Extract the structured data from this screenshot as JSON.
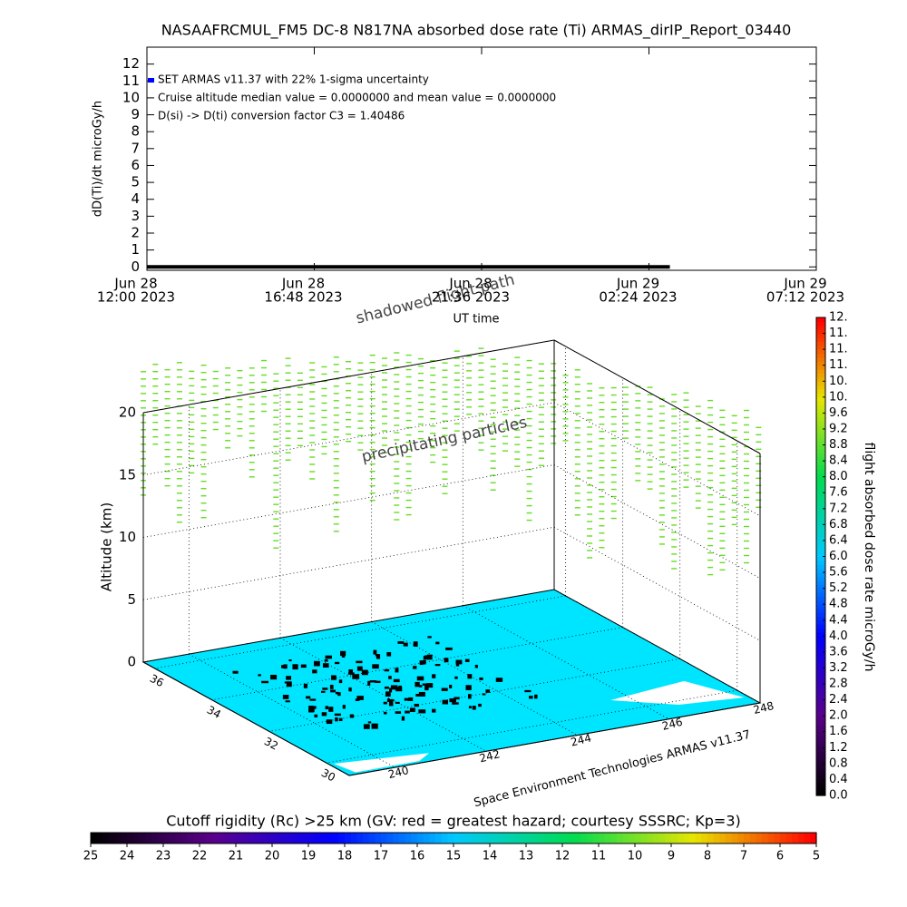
{
  "title": "NASAAFRCMUL_FM5 DC-8   N817NA absorbed dose rate (Ti) ARMAS_dirIP_Report_03440",
  "chart_data": [
    {
      "type": "line",
      "y_label": "dD(Ti)/dt microGy/h",
      "x_label": "UT time",
      "annotations": [
        "Cruise altitude median value = 0.0000000 and mean value = 0.0000000",
        "D(si) -> D(ti) conversion factor C3 = 1.40486"
      ],
      "x": [
        "2023-06-28T12:00",
        "2023-06-29T03:00"
      ],
      "series": [
        {
          "name": "SET ARMAS v11.37 with 22% 1-sigma uncertainty",
          "color": "#0000ff",
          "values": [
            0,
            0
          ]
        }
      ],
      "xlim": [
        "2023-06-28T12:00",
        "2023-06-29T07:12"
      ],
      "xticks": [
        {
          "value": "2023-06-28T12:00",
          "label": [
            "Jun 28",
            "12:00 2023"
          ]
        },
        {
          "value": "2023-06-28T16:48",
          "label": [
            "Jun 28",
            "16:48 2023"
          ]
        },
        {
          "value": "2023-06-28T21:36",
          "label": [
            "Jun 28",
            "21:36 2023"
          ]
        },
        {
          "value": "2023-06-29T02:24",
          "label": [
            "Jun 29",
            "02:24 2023"
          ]
        },
        {
          "value": "2023-06-29T07:12",
          "label": [
            "Jun 29",
            "07:12 2023"
          ]
        }
      ],
      "ylim": [
        -0.2,
        13
      ],
      "yticks": [
        0,
        1,
        2,
        3,
        4,
        5,
        6,
        7,
        8,
        9,
        10,
        11,
        12
      ]
    },
    {
      "type": "surface3d",
      "z_label": "Altitude (km)",
      "annotations": [
        "shadowed flight path",
        "precipitating particles",
        "Space Environment Technologies ARMAS v11.37"
      ],
      "xlim": [
        239,
        248
      ],
      "xticks": [
        240,
        242,
        244,
        246,
        248
      ],
      "ylim": [
        36.4,
        29.2
      ],
      "yticks": [
        36,
        34,
        32,
        30
      ],
      "zlim": [
        0,
        20
      ],
      "zticks": [
        0,
        5,
        10,
        15,
        20
      ]
    },
    {
      "type": "colorbar",
      "label": "flight absorbed dose rate microGy/h",
      "lim": [
        0,
        12
      ],
      "ticks": [
        {
          "value": 0,
          "label": "0.0"
        },
        {
          "value": 0.4,
          "label": "0.4"
        },
        {
          "value": 0.8,
          "label": "0.8"
        },
        {
          "value": 1.2,
          "label": "1.2"
        },
        {
          "value": 1.6,
          "label": "1.6"
        },
        {
          "value": 2,
          "label": "2.0"
        },
        {
          "value": 2.4,
          "label": "2.4"
        },
        {
          "value": 2.8,
          "label": "2.8"
        },
        {
          "value": 3.2,
          "label": "3.2"
        },
        {
          "value": 3.6,
          "label": "3.6"
        },
        {
          "value": 4,
          "label": "4.0"
        },
        {
          "value": 4.4,
          "label": "4.4"
        },
        {
          "value": 4.8,
          "label": "4.8"
        },
        {
          "value": 5.2,
          "label": "5.2"
        },
        {
          "value": 5.6,
          "label": "5.6"
        },
        {
          "value": 6,
          "label": "6.0"
        },
        {
          "value": 6.4,
          "label": "6.4"
        },
        {
          "value": 6.8,
          "label": "6.8"
        },
        {
          "value": 7.2,
          "label": "7.2"
        },
        {
          "value": 7.6,
          "label": "7.6"
        },
        {
          "value": 8,
          "label": "8.0"
        },
        {
          "value": 8.4,
          "label": "8.4"
        },
        {
          "value": 8.8,
          "label": "8.8"
        },
        {
          "value": 9.2,
          "label": "9.2"
        },
        {
          "value": 9.6,
          "label": "9.6"
        },
        {
          "value": 10,
          "label": "10."
        },
        {
          "value": 10.4,
          "label": "10."
        },
        {
          "value": 10.8,
          "label": "11."
        },
        {
          "value": 11.2,
          "label": "11."
        },
        {
          "value": 11.6,
          "label": "11."
        },
        {
          "value": 12,
          "label": "12."
        }
      ]
    },
    {
      "type": "colorbar",
      "label": "Cutoff rigidity (Rc) >25 km (GV: red = greatest hazard; courtesy SSSRC; Kp=3)",
      "lim": [
        25,
        5
      ],
      "ticks": [
        25,
        24,
        23,
        22,
        21,
        20,
        19,
        18,
        17,
        16,
        15,
        14,
        13,
        12,
        11,
        10,
        9,
        8,
        7,
        6,
        5
      ]
    }
  ]
}
